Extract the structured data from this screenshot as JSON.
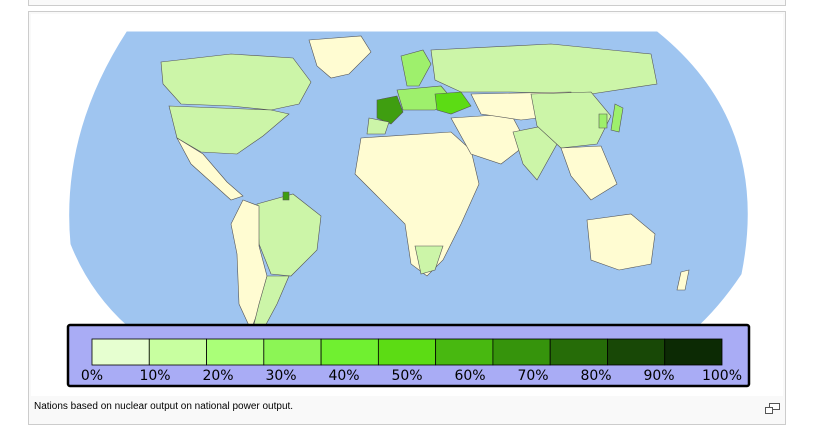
{
  "caption": {
    "text": "Nations based on nuclear output on national power output."
  },
  "legend": {
    "labels": [
      "0%",
      "10%",
      "20%",
      "30%",
      "40%",
      "50%",
      "60%",
      "70%",
      "80%",
      "90%",
      "100%"
    ],
    "colors": [
      "#e6ffd0",
      "#c8ffa0",
      "#aaff78",
      "#8cf555",
      "#70f030",
      "#5cdc14",
      "#48b810",
      "#36940c",
      "#266c08",
      "#184806",
      "#0c2a04"
    ]
  },
  "map_colors": {
    "ocean": "#9fc5f0",
    "no_nuclear": "#fffcd2",
    "low_share": "#ccf5a8",
    "mid_share": "#9ef06c",
    "high_share": "#5cdc14",
    "france": "#3f9e10",
    "border": "#555555",
    "legend_bg": "#a9acf5"
  },
  "magnify_icon": "magnify-clip-icon"
}
